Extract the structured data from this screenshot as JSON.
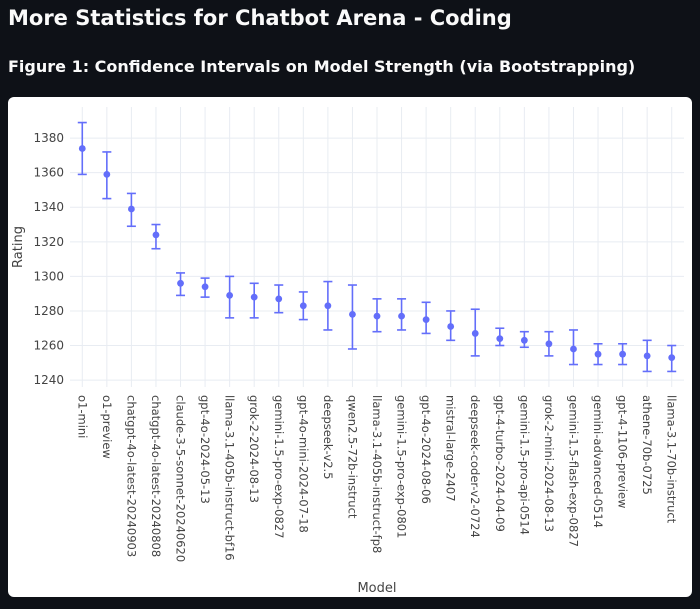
{
  "page": {
    "title": "More Statistics for Chatbot Arena - Coding",
    "figure_title": "Figure 1: Confidence Intervals on Model Strength (via Bootstrapping)"
  },
  "chart_data": {
    "type": "scatter",
    "subtype": "error-bar",
    "xlabel": "Model",
    "ylabel": "Rating",
    "ylim": [
      1236,
      1398
    ],
    "yticks": [
      1240,
      1260,
      1280,
      1300,
      1320,
      1340,
      1360,
      1380
    ],
    "grid": true,
    "color": "#636efa",
    "categories": [
      "o1-mini",
      "o1-preview",
      "chatgpt-4o-latest-20240903",
      "chatgpt-4o-latest-20240808",
      "claude-3-5-sonnet-20240620",
      "gpt-4o-2024-05-13",
      "llama-3.1-405b-instruct-bf16",
      "grok-2-2024-08-13",
      "gemini-1.5-pro-exp-0827",
      "gpt-4o-mini-2024-07-18",
      "deepseek-v2.5",
      "qwen2.5-72b-instruct",
      "llama-3.1-405b-instruct-fp8",
      "gemini-1.5-pro-exp-0801",
      "gpt-4o-2024-08-06",
      "mistral-large-2407",
      "deepseek-coder-v2-0724",
      "gpt-4-turbo-2024-04-09",
      "gemini-1.5-pro-api-0514",
      "grok-2-mini-2024-08-13",
      "gemini-1.5-flash-exp-0827",
      "gemini-advanced-0514",
      "gpt-4-1106-preview",
      "athene-70b-0725",
      "llama-3.1-70b-instruct"
    ],
    "values": [
      1374,
      1359,
      1339,
      1324,
      1296,
      1294,
      1289,
      1288,
      1287,
      1283,
      1283,
      1278,
      1277,
      1277,
      1275,
      1271,
      1267,
      1264,
      1263,
      1261,
      1258,
      1255,
      1255,
      1254,
      1253
    ],
    "upper": [
      1389,
      1372,
      1348,
      1330,
      1302,
      1299,
      1300,
      1296,
      1295,
      1291,
      1297,
      1295,
      1287,
      1287,
      1285,
      1280,
      1281,
      1270,
      1268,
      1268,
      1269,
      1261,
      1261,
      1263,
      1260
    ],
    "lower": [
      1359,
      1345,
      1329,
      1316,
      1289,
      1288,
      1276,
      1276,
      1279,
      1275,
      1269,
      1258,
      1268,
      1269,
      1267,
      1263,
      1254,
      1260,
      1259,
      1254,
      1249,
      1249,
      1249,
      1245,
      1245
    ]
  }
}
